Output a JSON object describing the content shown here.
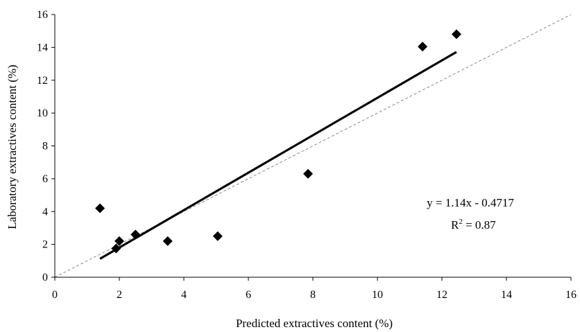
{
  "chart_data": {
    "type": "scatter",
    "xlabel": "Predicted extractives content (%)",
    "ylabel": "Laboratory extractives content (%)",
    "xlim": [
      0,
      16
    ],
    "ylim": [
      0,
      16
    ],
    "xticks": [
      0,
      2,
      4,
      6,
      8,
      10,
      12,
      14,
      16
    ],
    "yticks": [
      0,
      2,
      4,
      6,
      8,
      10,
      12,
      14,
      16
    ],
    "series": [
      {
        "marker": "diamond",
        "color": "#000000",
        "x": [
          1.4,
          1.9,
          2.0,
          2.5,
          3.5,
          5.05,
          7.85,
          11.4,
          12.45
        ],
        "y": [
          4.2,
          1.75,
          2.2,
          2.6,
          2.2,
          2.5,
          6.3,
          14.05,
          14.8
        ]
      }
    ],
    "trendline": {
      "slope": 1.14,
      "intercept": -0.4717,
      "x_range": [
        1.4,
        12.45
      ]
    },
    "reference_line": {
      "style": "dashed",
      "slope": 1,
      "intercept": 0
    },
    "annotation": {
      "equation": "y = 1.14x - 0.4717",
      "r2_label": "R",
      "r2_sup": "2",
      "r2_value": " = 0.87"
    }
  }
}
